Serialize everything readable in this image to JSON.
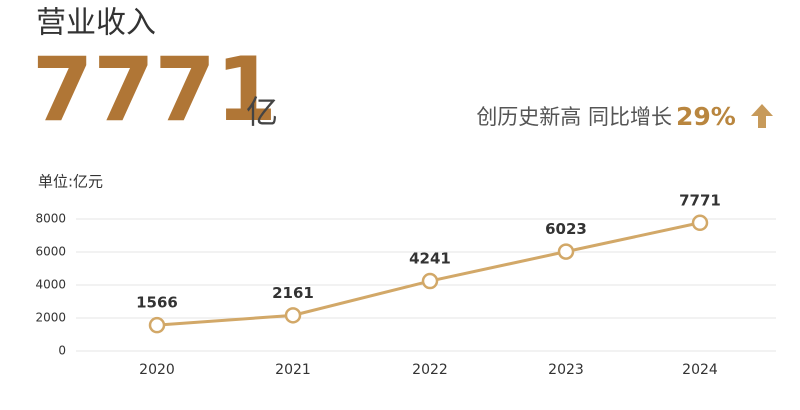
{
  "header": {
    "title": "营业收入",
    "value": "7771",
    "unit": "亿",
    "note": "创历史新高 同比增长",
    "growth": "29%"
  },
  "chart_data": {
    "type": "line",
    "unit_label": "单位:亿元",
    "categories": [
      "2020",
      "2021",
      "2022",
      "2023",
      "2024"
    ],
    "values": [
      1566,
      2161,
      4241,
      6023,
      7771
    ],
    "color": "#d2a868",
    "ylim": [
      0,
      8000
    ],
    "yticks": [
      0,
      2000,
      4000,
      6000,
      8000
    ],
    "grid": true
  }
}
